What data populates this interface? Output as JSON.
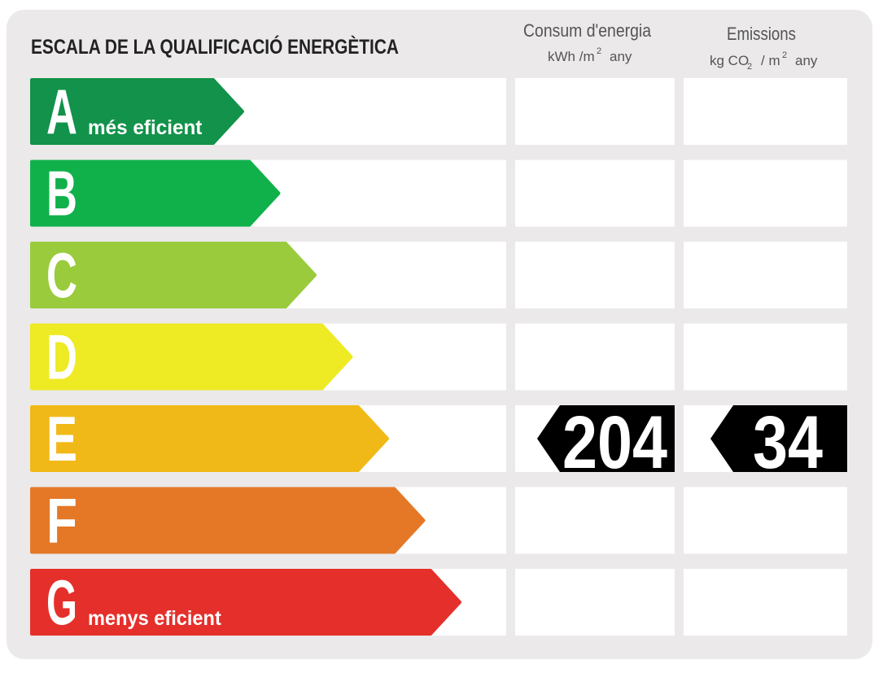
{
  "title": "ESCALA DE LA QUALIFICACIÓ ENERGÈTICA",
  "columns": {
    "energy": {
      "label": "Consum d'energia",
      "unit": [
        "kWh /m",
        "2",
        "any"
      ]
    },
    "emissions": {
      "label": "Emissions",
      "unit": [
        "kg CO",
        "2",
        "/ m",
        "2",
        "any"
      ]
    }
  },
  "grades": [
    {
      "letter": "A",
      "note": "més eficient",
      "color": "#12924a"
    },
    {
      "letter": "B",
      "color": "#10b14b"
    },
    {
      "letter": "C",
      "color": "#9acb3c"
    },
    {
      "letter": "D",
      "color": "#eeea24"
    },
    {
      "letter": "E",
      "color": "#f1b917"
    },
    {
      "letter": "F",
      "color": "#e47827"
    },
    {
      "letter": "G",
      "note": "menys eficient",
      "color": "#e52f2b"
    }
  ],
  "rating": {
    "grade": "E",
    "energy": 204,
    "emissions": 34
  }
}
